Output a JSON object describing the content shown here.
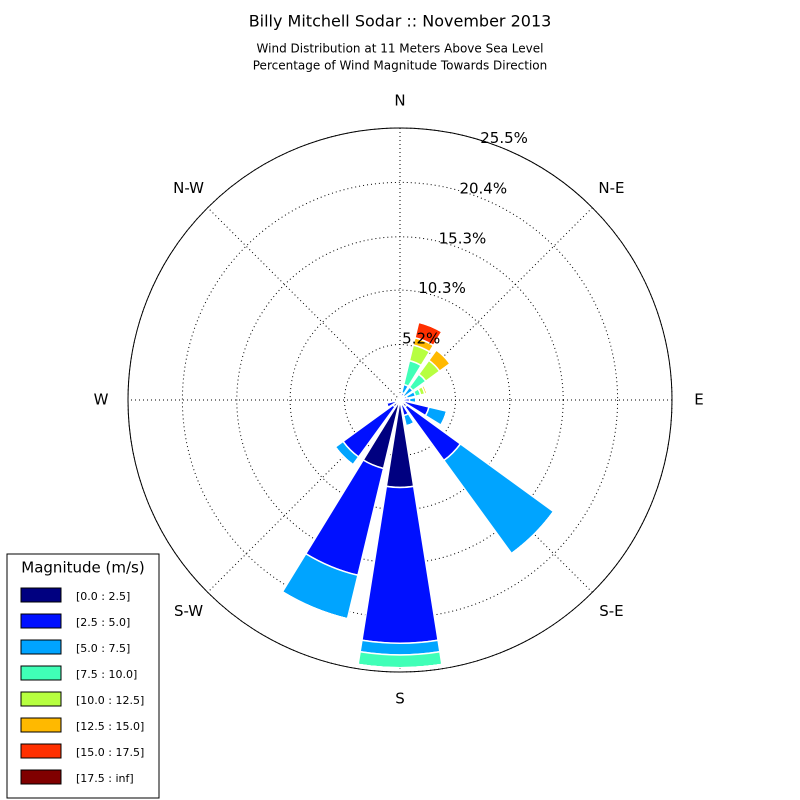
{
  "chart_data": {
    "type": "windrose",
    "title": "Billy Mitchell Sodar :: November 2013",
    "subtitle": [
      "Wind Distribution at 11 Meters Above Sea Level",
      "Percentage of Wind Magnitude Towards Direction"
    ],
    "categories": [
      "N",
      null,
      "N-E",
      null,
      "E",
      null,
      "S-E",
      null,
      "S",
      null,
      "S-W",
      null,
      "W",
      null,
      "N-W",
      null
    ],
    "rlim": [
      0,
      25.5
    ],
    "rticks": [
      {
        "value": 5.2,
        "label": "5.2%"
      },
      {
        "value": 10.3,
        "label": "10.3%"
      },
      {
        "value": 15.3,
        "label": "15.3%"
      },
      {
        "value": 20.4,
        "label": "20.4%"
      },
      {
        "value": 25.5,
        "label": "25.5%"
      }
    ],
    "grid": true,
    "legend_title": "Magnitude (m/s)",
    "legend_position": "lower left",
    "series": [
      {
        "name": "[0.0 : 2.5]",
        "color": "#000080",
        "values": [
          0.3,
          0.2,
          0.2,
          0.2,
          0.3,
          0.5,
          0.8,
          0.5,
          8.2,
          6.6,
          0.8,
          0.4,
          0.3,
          0.2,
          0.2,
          0.2
        ]
      },
      {
        "name": "[2.5 : 5.0]",
        "color": "#0010ff",
        "values": [
          0.3,
          0.5,
          0.3,
          0.5,
          0.6,
          2.3,
          6.2,
          1.0,
          14.6,
          10.3,
          5.8,
          0.9,
          0,
          0,
          0,
          0
        ]
      },
      {
        "name": "[5.0 : 7.5]",
        "color": "#00a4ff",
        "values": [
          0,
          0.8,
          1.0,
          0.8,
          0.6,
          1.7,
          10.8,
          1.0,
          1.1,
          4.2,
          0.9,
          0,
          0,
          0,
          0,
          0
        ]
      },
      {
        "name": "[7.5 : 10.0]",
        "color": "#40ffb7",
        "values": [
          0,
          2.3,
          1.5,
          0.5,
          0,
          0,
          0,
          0,
          1.2,
          0,
          0,
          0,
          0,
          0,
          0,
          0
        ]
      },
      {
        "name": "[10.0 : 12.5]",
        "color": "#b7ff40",
        "values": [
          0,
          1.5,
          1.6,
          0.4,
          0,
          0,
          0,
          0,
          0,
          0,
          0,
          0,
          0,
          0,
          0,
          0
        ]
      },
      {
        "name": "[12.5 : 15.0]",
        "color": "#ffb900",
        "values": [
          0,
          0.7,
          1.2,
          0.2,
          0,
          0,
          0,
          0,
          0,
          0,
          0,
          0,
          0,
          0,
          0,
          0
        ]
      },
      {
        "name": "[15.0 : 17.5]",
        "color": "#ff3000",
        "values": [
          0,
          1.5,
          0,
          0,
          0,
          0,
          0,
          0,
          0,
          0,
          0,
          0,
          0,
          0,
          0,
          0
        ]
      },
      {
        "name": "[17.5 : inf]",
        "color": "#800000",
        "values": [
          0,
          0,
          0,
          0,
          0,
          0,
          0,
          0,
          0,
          0,
          0,
          0,
          0,
          0,
          0,
          0
        ]
      }
    ]
  }
}
